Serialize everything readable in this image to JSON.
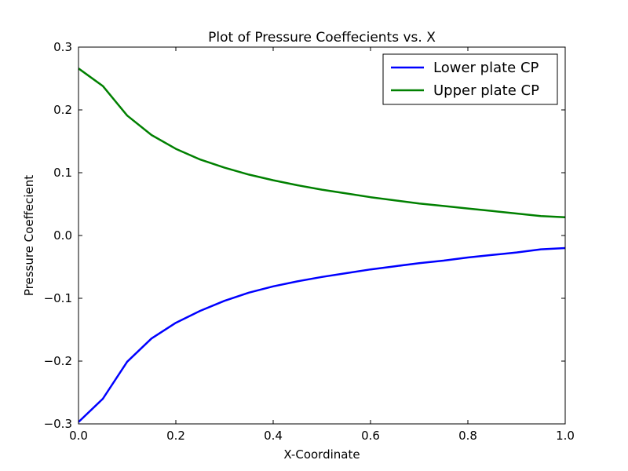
{
  "chart_data": {
    "type": "line",
    "title": "Plot of Pressure Coeffecients vs. X",
    "xlabel": "X-Coordinate",
    "ylabel": "Pressure Coeffecient",
    "xlim": [
      0.0,
      1.0
    ],
    "ylim": [
      -0.3,
      0.3
    ],
    "x_ticks": [
      0.0,
      0.2,
      0.4,
      0.6,
      0.8,
      1.0
    ],
    "x_tick_labels": [
      "0.0",
      "0.2",
      "0.4",
      "0.6",
      "0.8",
      "1.0"
    ],
    "y_ticks": [
      0.3,
      0.2,
      0.1,
      0.0,
      -0.1,
      -0.2,
      -0.3
    ],
    "y_tick_labels": [
      "0.3",
      "0.2",
      "0.1",
      "0.0",
      "−0.1",
      "−0.2",
      "−0.3"
    ],
    "grid": false,
    "legend_position": "top-right",
    "x": [
      0.0,
      0.05,
      0.1,
      0.15,
      0.2,
      0.25,
      0.3,
      0.35,
      0.4,
      0.45,
      0.5,
      0.55,
      0.6,
      0.65,
      0.7,
      0.75,
      0.8,
      0.85,
      0.9,
      0.95,
      1.0
    ],
    "series": [
      {
        "name": "Lower plate CP",
        "color": "#0000ff",
        "values": [
          -0.297,
          -0.26,
          -0.201,
          -0.164,
          -0.139,
          -0.12,
          -0.104,
          -0.091,
          -0.081,
          -0.073,
          -0.066,
          -0.06,
          -0.054,
          -0.049,
          -0.044,
          -0.04,
          -0.035,
          -0.031,
          -0.027,
          -0.022,
          -0.02
        ]
      },
      {
        "name": "Upper plate CP",
        "color": "#008000",
        "values": [
          0.266,
          0.238,
          0.191,
          0.16,
          0.138,
          0.121,
          0.108,
          0.097,
          0.088,
          0.08,
          0.073,
          0.067,
          0.061,
          0.056,
          0.051,
          0.047,
          0.043,
          0.039,
          0.035,
          0.031,
          0.029
        ]
      }
    ]
  }
}
